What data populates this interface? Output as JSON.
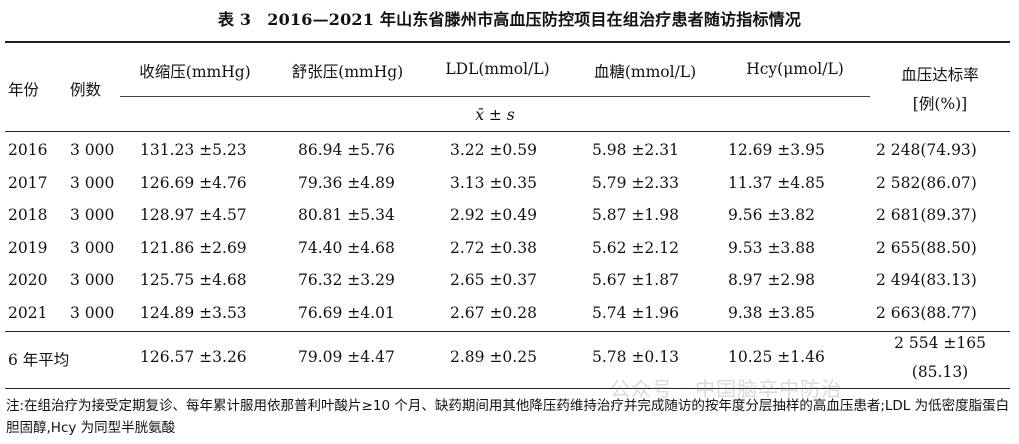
{
  "caption": {
    "number": "表 3",
    "title": "2016—2021 年山东省滕州市高血压防控项目在组治疗患者随访指标情况"
  },
  "headers": {
    "year": "年份",
    "count": "例数",
    "sbp": "收缩压(mmHg)",
    "dbp": "舒张压(mmHg)",
    "ldl": "LDL(mmol/L)",
    "glucose": "血糖(mmol/L)",
    "hcy": "Hcy(μmol/L)",
    "rate_line1": "血压达标率",
    "rate_line2": "[例(%)]",
    "stat": "x̄ ± s"
  },
  "rows": [
    {
      "year": "2016",
      "count": "3 000",
      "sbp": "131.23 ±5.23",
      "dbp": "86.94 ±5.76",
      "ldl": "3.22 ±0.59",
      "glucose": "5.98 ±2.31",
      "hcy": "12.69 ±3.95",
      "rate": "2 248(74.93)"
    },
    {
      "year": "2017",
      "count": "3 000",
      "sbp": "126.69 ±4.76",
      "dbp": "79.36 ±4.89",
      "ldl": "3.13 ±0.35",
      "glucose": "5.79 ±2.33",
      "hcy": "11.37 ±4.85",
      "rate": "2 582(86.07)"
    },
    {
      "year": "2018",
      "count": "3 000",
      "sbp": "128.97 ±4.57",
      "dbp": "80.81 ±5.34",
      "ldl": "2.92 ±0.49",
      "glucose": "5.87 ±1.98",
      "hcy": "9.56 ±3.82",
      "rate": "2 681(89.37)"
    },
    {
      "year": "2019",
      "count": "3 000",
      "sbp": "121.86 ±2.69",
      "dbp": "74.40 ±4.68",
      "ldl": "2.72 ±0.38",
      "glucose": "5.62 ±2.12",
      "hcy": "9.53 ±3.88",
      "rate": "2 655(88.50)"
    },
    {
      "year": "2020",
      "count": "3 000",
      "sbp": "125.75 ±4.68",
      "dbp": "76.32 ±3.29",
      "ldl": "2.65 ±0.37",
      "glucose": "5.67 ±1.87",
      "hcy": "8.97 ±2.98",
      "rate": "2 494(83.13)"
    },
    {
      "year": "2021",
      "count": "3 000",
      "sbp": "124.89 ±3.53",
      "dbp": "76.69 ±4.01",
      "ldl": "2.67 ±0.28",
      "glucose": "5.74 ±1.96",
      "hcy": "9.38 ±3.85",
      "rate": "2 663(88.77)"
    }
  ],
  "average": {
    "label": "6 年平均",
    "sbp": "126.57 ±3.26",
    "dbp": "79.09 ±4.47",
    "ldl": "2.89 ±0.25",
    "glucose": "5.78 ±0.13",
    "hcy": "10.25 ±1.46",
    "rate_line1": "2 554 ±165",
    "rate_line2": "(85.13)"
  },
  "note": "注:在组治疗为接受定期复诊、每年累计服用依那普利叶酸片≥10 个月、缺药期间用其他降压药维持治疗并完成随访的按年度分层抽样的高血压患者;LDL 为低密度脂蛋白胆固醇,Hcy 为同型半胱氨酸",
  "watermark": "公众号 · 中国脑卒中防治"
}
